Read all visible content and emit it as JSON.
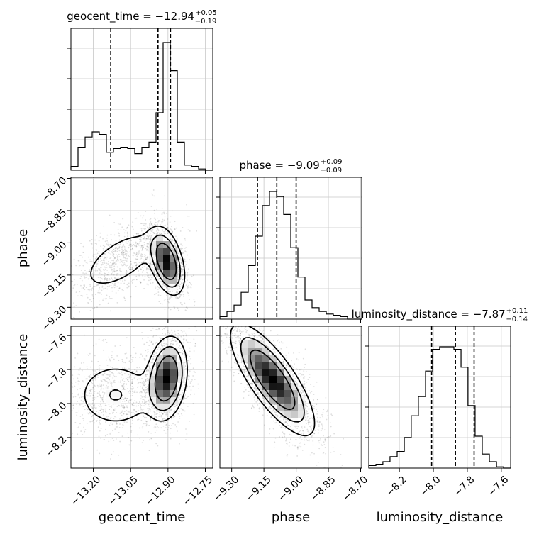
{
  "chart_data": {
    "type": "corner",
    "parameters": [
      "geocent_time",
      "phase",
      "luminosity_distance"
    ],
    "axis_labels": {
      "geocent_time": "geocent_time",
      "phase": "phase",
      "luminosity_distance": "luminosity_distance"
    },
    "ranges": {
      "geocent_time": [
        -13.29,
        -12.72
      ],
      "phase": [
        -9.355,
        -8.695
      ],
      "luminosity_distance": [
        -8.38,
        -7.545
      ]
    },
    "ticks": {
      "geocent_time": {
        "values": [
          -13.2,
          -13.05,
          -12.9,
          -12.75
        ],
        "labels": [
          "−13.20",
          "−13.05",
          "−12.90",
          "−12.75"
        ]
      },
      "phase": {
        "values": [
          -9.3,
          -9.15,
          -9.0,
          -8.85,
          -8.7
        ],
        "labels": [
          "−9.30",
          "−9.15",
          "−9.00",
          "−8.85",
          "−8.70"
        ]
      },
      "luminosity_distance": {
        "values": [
          -8.2,
          -8.0,
          -7.8,
          -7.6
        ],
        "labels": [
          "−8.2",
          "−8.0",
          "−7.8",
          "−7.6"
        ]
      }
    },
    "titles": [
      {
        "param": "geocent_time",
        "prefix": "geocent_time = ",
        "median": "−12.94",
        "plus": "+0.05",
        "minus": "−0.19"
      },
      {
        "param": "phase",
        "prefix": "phase = ",
        "median": "−9.09",
        "plus": "+0.09",
        "minus": "−0.09"
      },
      {
        "param": "luminosity_distance",
        "prefix": "luminosity_distance = ",
        "median": "−7.87",
        "plus": "+0.11",
        "minus": "−0.14"
      }
    ],
    "quantiles": {
      "geocent_time": [
        -13.13,
        -12.94,
        -12.89
      ],
      "phase": [
        -9.18,
        -9.09,
        -9.0
      ],
      "luminosity_distance": [
        -8.01,
        -7.87,
        -7.76
      ]
    },
    "histograms": {
      "geocent_time": {
        "edges": [
          -13.29,
          -13.2615,
          -13.233,
          -13.2045,
          -13.176,
          -13.1475,
          -13.119,
          -13.0905,
          -13.062,
          -13.0335,
          -13.005,
          -12.9765,
          -12.948,
          -12.9195,
          -12.891,
          -12.8625,
          -12.834,
          -12.8055,
          -12.777,
          -12.7485,
          -12.72
        ],
        "counts": [
          0.03,
          0.18,
          0.26,
          0.3,
          0.28,
          0.14,
          0.17,
          0.18,
          0.17,
          0.13,
          0.18,
          0.22,
          0.45,
          1.0,
          0.78,
          0.22,
          0.04,
          0.03,
          0.01,
          0.0
        ]
      },
      "phase": {
        "edges": [
          -9.355,
          -9.322,
          -9.289,
          -9.256,
          -9.223,
          -9.19,
          -9.157,
          -9.124,
          -9.091,
          -9.058,
          -9.025,
          -8.992,
          -8.959,
          -8.926,
          -8.893,
          -8.86,
          -8.827,
          -8.794,
          -8.761,
          -8.728,
          -8.695
        ],
        "counts": [
          0.02,
          0.06,
          0.11,
          0.21,
          0.42,
          0.65,
          0.89,
          1.0,
          0.96,
          0.82,
          0.56,
          0.33,
          0.15,
          0.09,
          0.06,
          0.04,
          0.03,
          0.02,
          0.0,
          0.0
        ]
      },
      "luminosity_distance": {
        "edges": [
          -8.38,
          -8.338,
          -8.297,
          -8.255,
          -8.213,
          -8.171,
          -8.13,
          -8.088,
          -8.046,
          -8.004,
          -7.963,
          -7.921,
          -7.879,
          -7.837,
          -7.796,
          -7.754,
          -7.712,
          -7.67,
          -7.628,
          -7.587,
          -7.545
        ],
        "counts": [
          0.02,
          0.03,
          0.05,
          0.09,
          0.13,
          0.24,
          0.41,
          0.56,
          0.76,
          0.93,
          0.95,
          0.95,
          0.93,
          0.79,
          0.49,
          0.25,
          0.11,
          0.05,
          0.01,
          0.0
        ]
      }
    },
    "density_2d": {
      "phase__geocent_time": {
        "x": "geocent_time",
        "y": "phase",
        "components": [
          {
            "weight": 0.58,
            "mean": [
              -12.905,
              -9.09
            ],
            "sd": [
              0.035,
              0.075
            ],
            "rho": -0.4
          },
          {
            "weight": 0.42,
            "mean": [
              -13.09,
              -9.08
            ],
            "sd": [
              0.095,
              0.085
            ],
            "rho": 0.6
          }
        ]
      },
      "luminosity_distance__geocent_time": {
        "x": "geocent_time",
        "y": "luminosity_distance",
        "components": [
          {
            "weight": 0.6,
            "mean": [
              -12.905,
              -7.85
            ],
            "sd": [
              0.04,
              0.12
            ],
            "rho": 0.2
          },
          {
            "weight": 0.4,
            "mean": [
              -13.11,
              -7.95
            ],
            "sd": [
              0.09,
              0.11
            ],
            "rho": 0.0
          }
        ]
      },
      "luminosity_distance__phase": {
        "x": "phase",
        "y": "luminosity_distance",
        "components": [
          {
            "weight": 1.0,
            "mean": [
              -9.11,
              -7.86
            ],
            "sd": [
              0.095,
              0.16
            ],
            "rho": -0.78
          }
        ]
      }
    },
    "grid": true
  }
}
